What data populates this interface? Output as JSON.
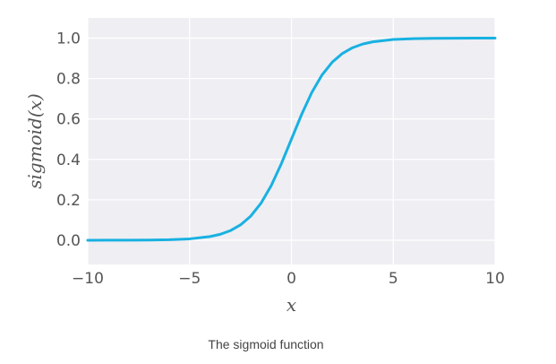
{
  "caption": "The sigmoid function",
  "chart_data": {
    "type": "line",
    "xlabel": "x",
    "ylabel": "sigmoid(x)",
    "xlim": [
      -10,
      10
    ],
    "ylim": [
      -0.12,
      1.1
    ],
    "x_ticks": [
      -10,
      -5,
      0,
      5,
      10
    ],
    "x_tick_labels": [
      "−10",
      "−5",
      "0",
      "5",
      "10"
    ],
    "y_ticks": [
      0.0,
      0.2,
      0.4,
      0.6,
      0.8,
      1.0
    ],
    "y_tick_labels": [
      "0.0",
      "0.2",
      "0.4",
      "0.6",
      "0.8",
      "1.0"
    ],
    "grid": true,
    "series": [
      {
        "x": [
          -10,
          -9,
          -8,
          -7,
          -6,
          -5,
          -4,
          -3.5,
          -3,
          -2.5,
          -2,
          -1.5,
          -1,
          -0.5,
          0,
          0.5,
          1,
          1.5,
          2,
          2.5,
          3,
          3.5,
          4,
          5,
          6,
          7,
          8,
          9,
          10
        ],
        "y": [
          0.0,
          0.0001,
          0.0003,
          0.0009,
          0.0025,
          0.0067,
          0.018,
          0.0293,
          0.0474,
          0.0759,
          0.1192,
          0.1824,
          0.2689,
          0.3775,
          0.5,
          0.6225,
          0.7311,
          0.8176,
          0.8808,
          0.9241,
          0.9526,
          0.9707,
          0.982,
          0.9933,
          0.9975,
          0.9991,
          0.9997,
          0.9999,
          1.0
        ],
        "color": "#18b1e1"
      }
    ],
    "colors": {
      "plot_background": "#eeeef3",
      "grid": "#ffffff",
      "text": "#555555"
    }
  }
}
